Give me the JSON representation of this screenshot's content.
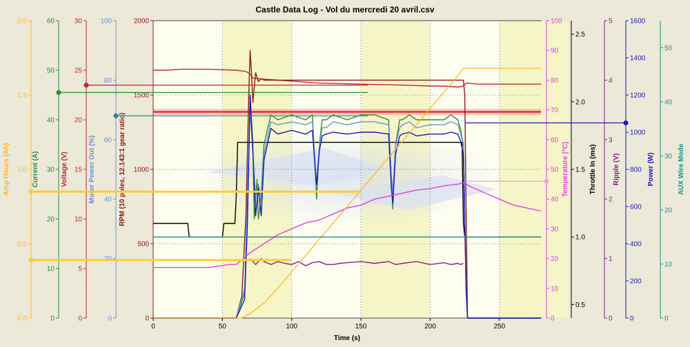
{
  "chart_data": {
    "type": "line",
    "title": "Castle Data Log - Vol du mercredi 20 avril.csv",
    "xlabel": "Time (s)",
    "xlim": [
      0,
      280
    ],
    "x_ticks": [
      "0",
      "50",
      "100",
      "150",
      "200",
      "250"
    ],
    "plot_bg": "#fefef0",
    "plot_bg_stripes": "#f5f5c8",
    "axes": [
      {
        "id": "amp_hours",
        "label": "Amp Hours (Ah)",
        "color": "#ffb62a",
        "ylim": [
          0,
          2.0
        ],
        "ticks": [
          "0.0",
          "0.5",
          "1.0",
          "1.5",
          "2.0"
        ],
        "values": [
          0,
          0.5,
          1.0,
          1.5,
          2.0
        ]
      },
      {
        "id": "current",
        "label": "Current (A)",
        "color": "#2e8b2e",
        "ylim": [
          0,
          60
        ],
        "ticks": [
          "0",
          "10",
          "20",
          "30",
          "40",
          "50",
          "60"
        ],
        "values": [
          0,
          10,
          20,
          30,
          40,
          50,
          60
        ]
      },
      {
        "id": "voltage",
        "label": "Voltage (V)",
        "color": "#c0282d",
        "ylim": [
          0,
          30
        ],
        "ticks": [
          "0",
          "5",
          "10",
          "15",
          "20",
          "25",
          "30"
        ],
        "values": [
          0,
          5,
          10,
          15,
          20,
          25,
          30
        ]
      },
      {
        "id": "motor_power",
        "label": "Motor Power Out (%)",
        "color": "#6a93d4",
        "ylim": [
          0,
          100
        ],
        "ticks": [
          "0",
          "20",
          "40",
          "60",
          "80",
          "100"
        ],
        "values": [
          0,
          20,
          40,
          60,
          80,
          100
        ]
      },
      {
        "id": "rpm",
        "label": "RPM (10 poles, 12.143:1 gear ratio)",
        "color": "#8b1a1a",
        "ylim": [
          0,
          2000
        ],
        "ticks": [
          "0",
          "500",
          "1000",
          "1500",
          "2000"
        ],
        "values": [
          0,
          500,
          1000,
          1500,
          2000
        ]
      },
      {
        "id": "temperature",
        "label": "Temperature (°C)",
        "color": "#e040e0",
        "ylim": [
          0,
          100
        ],
        "ticks": [
          "0",
          "10",
          "20",
          "30",
          "40",
          "50",
          "60",
          "70",
          "80",
          "90",
          "100"
        ],
        "values": [
          0,
          10,
          20,
          30,
          40,
          50,
          60,
          70,
          80,
          90,
          100
        ]
      },
      {
        "id": "throttle",
        "label": "Throttle In (ms)",
        "color": "#000000",
        "ylim": [
          0.4,
          2.6
        ],
        "ticks": [
          "0.5",
          "1.0",
          "1.5",
          "2.0",
          "2.5"
        ],
        "values": [
          0.5,
          1.0,
          1.5,
          2.0,
          2.5
        ]
      },
      {
        "id": "ripple",
        "label": "Ripple (V)",
        "color": "#8b1a8b",
        "ylim": [
          0,
          5
        ],
        "ticks": [
          "0",
          "1",
          "2",
          "3",
          "4",
          "5"
        ],
        "values": [
          0,
          1,
          2,
          3,
          4,
          5
        ]
      },
      {
        "id": "power",
        "label": "Power (W)",
        "color": "#1a1ab0",
        "ylim": [
          0,
          1600
        ],
        "ticks": [
          "0",
          "200",
          "400",
          "600",
          "800",
          "1000",
          "1200",
          "1400",
          "1600"
        ],
        "values": [
          0,
          200,
          400,
          600,
          800,
          1000,
          1200,
          1400,
          1600
        ]
      },
      {
        "id": "aux",
        "label": "AUX Wire Mode",
        "color": "#1a9090",
        "ylim": [
          0,
          55
        ],
        "ticks": [
          "0",
          "10",
          "20",
          "30",
          "40",
          "50"
        ],
        "values": [
          0,
          10,
          20,
          30,
          40,
          50
        ]
      }
    ],
    "series": [
      {
        "axis": "voltage",
        "color": "#c0282d",
        "x": [
          0,
          10,
          20,
          40,
          60,
          66,
          68,
          70,
          72,
          80,
          100,
          120,
          150,
          180,
          200,
          210,
          220,
          224,
          226,
          235,
          250,
          280
        ],
        "y": [
          25.0,
          25.0,
          25.1,
          25.1,
          25.0,
          24.9,
          24.8,
          24.6,
          24.2,
          24.1,
          23.9,
          23.7,
          23.6,
          23.5,
          23.4,
          23.4,
          23.3,
          23.4,
          23.7,
          23.6,
          23.6,
          23.6
        ]
      },
      {
        "axis": "rpm",
        "color": "#8b1a1a",
        "x": [
          0,
          60,
          64,
          67,
          69,
          70,
          71,
          72,
          74,
          76,
          78,
          80,
          224,
          225,
          226,
          227,
          228,
          230,
          280
        ],
        "y": [
          0,
          0,
          150,
          700,
          1500,
          1800,
          1650,
          1450,
          1650,
          1590,
          1610,
          1600,
          1600,
          1500,
          700,
          0,
          0,
          0,
          0
        ]
      },
      {
        "axis": "throttle",
        "color": "#000000",
        "x": [
          0,
          10,
          20,
          25,
          26,
          50,
          51,
          55,
          59,
          60,
          61,
          62,
          79,
          80,
          81,
          222,
          223,
          224,
          225,
          280
        ],
        "y": [
          1.1,
          1.1,
          1.1,
          1.1,
          1.0,
          1.0,
          1.1,
          1.1,
          1.1,
          1.3,
          1.7,
          1.7,
          1.7,
          1.7,
          1.7,
          1.7,
          1.7,
          1.1,
          1.0,
          1.0
        ]
      },
      {
        "axis": "current",
        "color": "#2e8b2e",
        "x": [
          0,
          60,
          66,
          68,
          70,
          72,
          73,
          75,
          76,
          78,
          80,
          85,
          90,
          100,
          110,
          115,
          117,
          118,
          120,
          122,
          125,
          130,
          140,
          150,
          160,
          170,
          172,
          173,
          175,
          178,
          180,
          185,
          190,
          200,
          210,
          215,
          220,
          222,
          224,
          225,
          226,
          227,
          280
        ],
        "y": [
          0,
          0,
          5,
          20,
          45,
          35,
          20,
          28,
          20,
          25,
          35,
          41,
          40,
          41,
          40,
          41,
          30,
          24,
          35,
          40,
          40,
          41,
          40,
          41,
          41,
          40,
          28,
          22,
          35,
          40,
          40,
          41,
          40,
          40,
          40,
          41,
          40,
          38,
          35,
          20,
          5,
          0,
          0
        ]
      },
      {
        "axis": "motor_power",
        "color": "#6a93d4",
        "x": [
          0,
          60,
          66,
          68,
          70,
          72,
          74,
          76,
          78,
          80,
          85,
          90,
          100,
          110,
          115,
          117,
          118,
          120,
          122,
          125,
          130,
          140,
          150,
          160,
          170,
          172,
          173,
          175,
          178,
          180,
          185,
          190,
          200,
          210,
          215,
          220,
          222,
          224,
          225,
          226,
          227,
          280
        ],
        "y": [
          0,
          0,
          10,
          40,
          70,
          55,
          40,
          45,
          40,
          55,
          66,
          65,
          66,
          65,
          66,
          52,
          45,
          58,
          64,
          64,
          66,
          65,
          66,
          66,
          65,
          48,
          42,
          58,
          64,
          65,
          66,
          64,
          65,
          65,
          66,
          65,
          62,
          58,
          35,
          10,
          0,
          0
        ]
      },
      {
        "axis": "power",
        "color": "#1a1ab0",
        "x": [
          0,
          60,
          66,
          68,
          70,
          72,
          74,
          76,
          78,
          80,
          85,
          90,
          100,
          110,
          115,
          117,
          118,
          120,
          122,
          125,
          130,
          140,
          150,
          160,
          170,
          172,
          173,
          175,
          178,
          180,
          185,
          190,
          200,
          210,
          215,
          220,
          222,
          224,
          225,
          226,
          227,
          280
        ],
        "y": [
          0,
          0,
          100,
          500,
          1200,
          900,
          550,
          700,
          550,
          850,
          1020,
          990,
          1010,
          990,
          1010,
          800,
          720,
          900,
          980,
          990,
          1000,
          990,
          1000,
          1000,
          990,
          700,
          620,
          880,
          980,
          990,
          1000,
          980,
          990,
          990,
          1000,
          990,
          950,
          880,
          500,
          150,
          0,
          0
        ]
      },
      {
        "axis": "temperature",
        "color": "#e040e0",
        "x": [
          0,
          20,
          40,
          55,
          60,
          65,
          70,
          80,
          90,
          100,
          110,
          120,
          130,
          140,
          150,
          160,
          170,
          180,
          190,
          200,
          210,
          220,
          224,
          226,
          230,
          240,
          250,
          260,
          270,
          280
        ],
        "y": [
          17,
          17,
          17,
          18,
          18,
          20,
          22,
          25,
          28,
          30,
          32,
          33,
          35,
          37,
          38,
          40,
          41,
          42,
          43,
          43.5,
          44.5,
          45,
          45.5,
          45,
          44,
          42,
          40,
          38,
          37,
          36
        ]
      },
      {
        "axis": "ripple",
        "color": "#8b1a8b",
        "x": [
          70,
          72,
          74,
          78,
          80,
          85,
          90,
          95,
          100,
          105,
          110,
          115,
          120,
          125,
          130,
          135,
          140,
          150,
          160,
          170,
          175,
          180,
          190,
          200,
          210,
          215,
          220,
          222,
          224
        ],
        "y": [
          1.0,
          0.95,
          0.9,
          1.0,
          0.95,
          0.9,
          0.95,
          0.92,
          0.9,
          0.95,
          0.88,
          0.93,
          0.95,
          0.9,
          0.9,
          0.92,
          0.93,
          0.95,
          0.92,
          0.95,
          0.9,
          0.92,
          0.95,
          0.9,
          0.93,
          0.9,
          0.92,
          0.9,
          0.92
        ]
      },
      {
        "axis": "amp_hours",
        "color": "#ffb62a",
        "x": [
          0,
          60,
          64,
          70,
          80,
          90,
          100,
          110,
          120,
          130,
          140,
          150,
          160,
          170,
          180,
          190,
          200,
          210,
          220,
          224,
          226,
          280
        ],
        "y": [
          0,
          0,
          0,
          0.03,
          0.1,
          0.2,
          0.31,
          0.42,
          0.53,
          0.64,
          0.75,
          0.86,
          0.97,
          1.08,
          1.19,
          1.3,
          1.41,
          1.52,
          1.63,
          1.68,
          1.68,
          1.68
        ]
      },
      {
        "axis": "aux",
        "color": "#1a9090",
        "x": [
          0,
          280
        ],
        "y": [
          15,
          15
        ]
      }
    ],
    "cursor_markers": [
      {
        "axis": "amp_hours",
        "y": 0.85,
        "color": "#ffcc33"
      },
      {
        "axis": "amp_hours",
        "y": 0.39,
        "color": "#ffcc33"
      },
      {
        "axis": "current",
        "y": 45.5,
        "color": "#2e8b2e"
      },
      {
        "axis": "voltage",
        "y": 23.5,
        "color": "#c0282d"
      },
      {
        "axis": "motor_power",
        "y": 68,
        "color": "#1a9090"
      },
      {
        "axis": "power",
        "y": 1050,
        "color": "#1a1ab0"
      },
      {
        "axis": "temperature",
        "y": 46,
        "color": "#ff9ad8"
      }
    ]
  }
}
